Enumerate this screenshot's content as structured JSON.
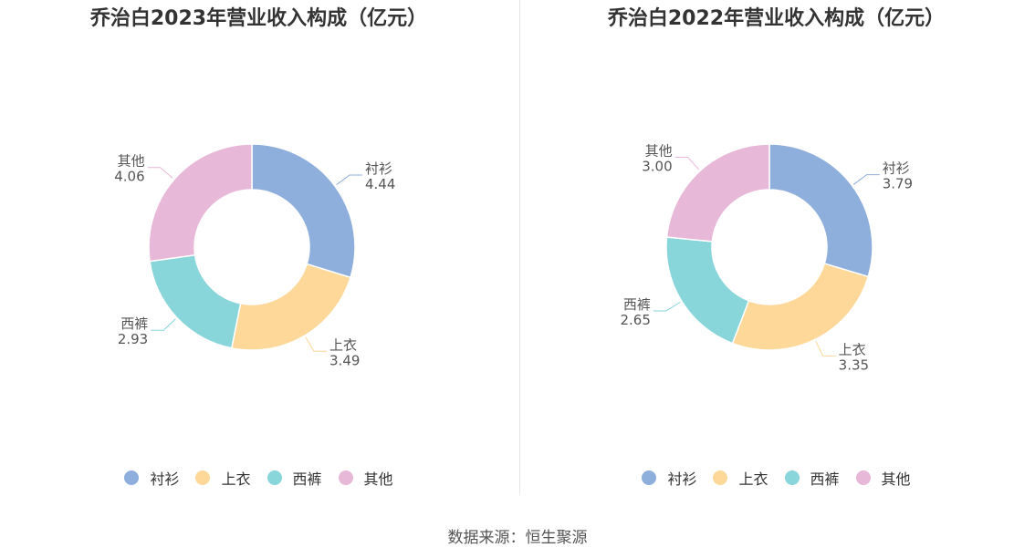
{
  "colors": {
    "衬衫": "#8eaedb",
    "上衣": "#fdd899",
    "西裤": "#88d5da",
    "其他": "#e8b8d8"
  },
  "chart_data": [
    {
      "type": "pie",
      "title": "乔治白2023年营业收入构成（亿元）",
      "categories": [
        "衬衫",
        "上衣",
        "西裤",
        "其他"
      ],
      "values": [
        4.44,
        3.49,
        2.93,
        4.06
      ],
      "value_labels": [
        "4.44",
        "3.49",
        "2.93",
        "4.06"
      ],
      "donut": true,
      "legend": "bottom"
    },
    {
      "type": "pie",
      "title": "乔治白2022年营业收入构成（亿元）",
      "categories": [
        "衬衫",
        "上衣",
        "西裤",
        "其他"
      ],
      "values": [
        3.79,
        3.35,
        2.65,
        3.0
      ],
      "value_labels": [
        "3.79",
        "3.35",
        "2.65",
        "3.00"
      ],
      "donut": true,
      "legend": "bottom"
    }
  ],
  "source": "数据来源：恒生聚源"
}
